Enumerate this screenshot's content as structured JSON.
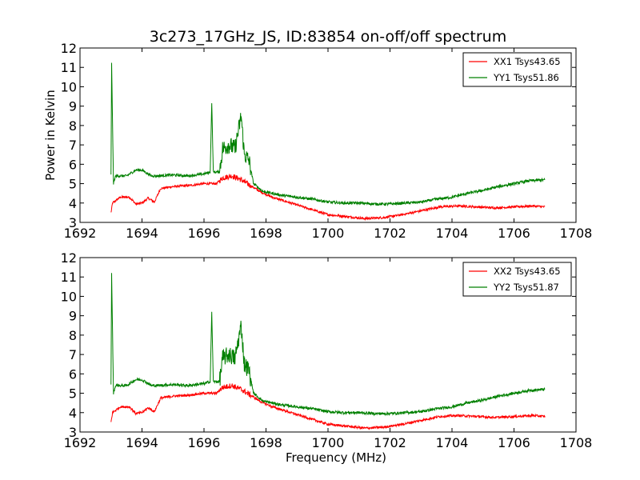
{
  "figure": {
    "title": "3c273_17GHz_JS, ID:83854 on-off/off spectrum"
  },
  "chart_data": [
    {
      "type": "line",
      "title": "3c273_17GHz_JS, ID:83854 on-off/off spectrum",
      "xlabel": "",
      "ylabel": "Power in Kelvin",
      "xlim": [
        1692,
        1708
      ],
      "ylim": [
        3,
        12
      ],
      "x_ticks": [
        "1692",
        "1694",
        "1696",
        "1698",
        "1700",
        "1702",
        "1704",
        "1706",
        "1708"
      ],
      "y_ticks": [
        "3",
        "4",
        "5",
        "6",
        "7",
        "8",
        "9",
        "10",
        "11",
        "12"
      ],
      "legend_position": "top-right",
      "grid": false,
      "series": [
        {
          "name": "XX1 Tsys43.65",
          "color": "#ff0000",
          "x": [
            1693.0,
            1693.05,
            1693.3,
            1693.6,
            1693.8,
            1694.0,
            1694.2,
            1694.4,
            1694.6,
            1695.0,
            1695.5,
            1696.0,
            1696.4,
            1696.6,
            1696.9,
            1697.2,
            1697.5,
            1697.8,
            1698.2,
            1698.8,
            1699.4,
            1700.0,
            1700.6,
            1701.2,
            1701.8,
            1702.4,
            1703.0,
            1703.6,
            1704.2,
            1704.8,
            1705.4,
            1706.0,
            1706.6,
            1707.0
          ],
          "y": [
            3.5,
            4.0,
            4.3,
            4.3,
            3.95,
            4.0,
            4.25,
            4.05,
            4.75,
            4.85,
            4.9,
            5.0,
            5.0,
            5.3,
            5.4,
            5.2,
            4.9,
            4.6,
            4.3,
            4.0,
            3.7,
            3.4,
            3.3,
            3.2,
            3.25,
            3.4,
            3.6,
            3.8,
            3.85,
            3.8,
            3.75,
            3.8,
            3.85,
            3.8
          ]
        },
        {
          "name": "YY1 Tsys51.86",
          "color": "#008000",
          "x": [
            1693.0,
            1693.02,
            1693.08,
            1693.15,
            1693.5,
            1693.8,
            1694.0,
            1694.3,
            1694.5,
            1695.0,
            1695.5,
            1696.0,
            1696.2,
            1696.25,
            1696.3,
            1696.5,
            1696.6,
            1696.8,
            1697.0,
            1697.2,
            1697.3,
            1697.45,
            1697.6,
            1697.9,
            1698.5,
            1699.0,
            1699.5,
            1700.0,
            1700.5,
            1701.0,
            1701.5,
            1702.0,
            1702.5,
            1703.0,
            1703.5,
            1704.0,
            1704.5,
            1705.0,
            1705.5,
            1706.0,
            1706.5,
            1707.0
          ],
          "y": [
            5.5,
            11.2,
            5.0,
            5.4,
            5.4,
            5.7,
            5.7,
            5.4,
            5.4,
            5.45,
            5.4,
            5.5,
            5.6,
            9.2,
            5.6,
            5.6,
            6.8,
            7.0,
            6.8,
            8.5,
            6.5,
            6.2,
            5.0,
            4.6,
            4.4,
            4.3,
            4.2,
            4.05,
            4.0,
            4.0,
            3.95,
            3.95,
            4.0,
            4.05,
            4.2,
            4.3,
            4.5,
            4.65,
            4.85,
            5.0,
            5.15,
            5.2
          ]
        }
      ]
    },
    {
      "type": "line",
      "title": "",
      "xlabel": "Frequency (MHz)",
      "ylabel": "",
      "xlim": [
        1692,
        1708
      ],
      "ylim": [
        3,
        12
      ],
      "x_ticks": [
        "1692",
        "1694",
        "1696",
        "1698",
        "1700",
        "1702",
        "1704",
        "1706",
        "1708"
      ],
      "y_ticks": [
        "3",
        "4",
        "5",
        "6",
        "7",
        "8",
        "9",
        "10",
        "11",
        "12"
      ],
      "legend_position": "top-right",
      "grid": false,
      "series": [
        {
          "name": "XX2 Tsys43.65",
          "color": "#ff0000",
          "x": [
            1693.0,
            1693.05,
            1693.3,
            1693.6,
            1693.8,
            1694.0,
            1694.2,
            1694.4,
            1694.6,
            1695.0,
            1695.5,
            1696.0,
            1696.4,
            1696.6,
            1696.9,
            1697.2,
            1697.5,
            1697.8,
            1698.2,
            1698.8,
            1699.4,
            1700.0,
            1700.6,
            1701.2,
            1701.8,
            1702.4,
            1703.0,
            1703.6,
            1704.2,
            1704.8,
            1705.4,
            1706.0,
            1706.6,
            1707.0
          ],
          "y": [
            3.5,
            4.0,
            4.3,
            4.3,
            3.95,
            4.0,
            4.25,
            4.05,
            4.75,
            4.85,
            4.9,
            5.0,
            5.0,
            5.3,
            5.4,
            5.2,
            4.9,
            4.6,
            4.3,
            4.0,
            3.7,
            3.4,
            3.3,
            3.2,
            3.25,
            3.4,
            3.6,
            3.8,
            3.85,
            3.8,
            3.75,
            3.8,
            3.85,
            3.8
          ]
        },
        {
          "name": "YY2 Tsys51.87",
          "color": "#008000",
          "x": [
            1693.0,
            1693.02,
            1693.08,
            1693.15,
            1693.5,
            1693.8,
            1694.0,
            1694.3,
            1694.5,
            1695.0,
            1695.5,
            1696.0,
            1696.2,
            1696.25,
            1696.3,
            1696.5,
            1696.6,
            1696.8,
            1697.0,
            1697.2,
            1697.3,
            1697.45,
            1697.6,
            1697.9,
            1698.5,
            1699.0,
            1699.5,
            1700.0,
            1700.5,
            1701.0,
            1701.5,
            1702.0,
            1702.5,
            1703.0,
            1703.5,
            1704.0,
            1704.5,
            1705.0,
            1705.5,
            1706.0,
            1706.5,
            1707.0
          ],
          "y": [
            5.5,
            11.2,
            5.0,
            5.4,
            5.4,
            5.7,
            5.7,
            5.4,
            5.4,
            5.45,
            5.4,
            5.5,
            5.6,
            9.2,
            5.6,
            5.6,
            6.8,
            7.0,
            6.8,
            8.5,
            6.5,
            6.2,
            5.0,
            4.6,
            4.4,
            4.3,
            4.2,
            4.05,
            4.0,
            4.0,
            3.95,
            3.95,
            4.0,
            4.05,
            4.2,
            4.3,
            4.5,
            4.65,
            4.85,
            5.0,
            5.15,
            5.2
          ]
        }
      ]
    }
  ]
}
